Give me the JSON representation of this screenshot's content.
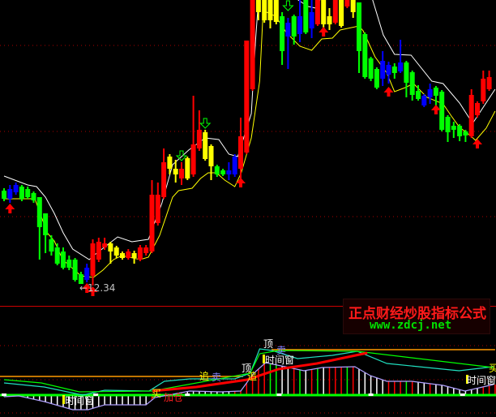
{
  "chart_data": {
    "type": "candlestick",
    "price_ylim": [
      11.84,
      19.38
    ],
    "candle_fields": [
      "high",
      "body_top",
      "body_bottom",
      "low",
      "color"
    ],
    "color_codes": {
      "r": "#ff0000",
      "g": "#00ff00",
      "y": "#ffff00",
      "b": "#0000ff"
    },
    "candles": [
      [
        14.74,
        14.68,
        14.48,
        14.42,
        "g"
      ],
      [
        14.82,
        14.72,
        14.48,
        14.38,
        "b"
      ],
      [
        14.88,
        14.82,
        14.64,
        14.58,
        "b"
      ],
      [
        14.82,
        14.78,
        14.48,
        14.42,
        "g"
      ],
      [
        14.78,
        14.72,
        14.52,
        14.48,
        "g"
      ],
      [
        14.66,
        14.62,
        14.44,
        14.38,
        "g"
      ],
      [
        14.52,
        14.52,
        13.78,
        12.98,
        "g"
      ],
      [
        14.12,
        14.12,
        13.58,
        13.14,
        "g"
      ],
      [
        13.58,
        13.48,
        13.18,
        13.08,
        "g"
      ],
      [
        13.38,
        13.28,
        12.88,
        12.84,
        "g"
      ],
      [
        13.28,
        13.18,
        12.78,
        12.74,
        "g"
      ],
      [
        13.08,
        12.98,
        12.78,
        12.72,
        "g"
      ],
      [
        13.02,
        12.98,
        12.48,
        12.44,
        "g"
      ],
      [
        12.68,
        12.62,
        12.38,
        12.38,
        "g"
      ],
      [
        12.88,
        12.78,
        12.48,
        12.42,
        "b"
      ],
      [
        13.48,
        13.38,
        12.58,
        12.34,
        "r"
      ],
      [
        13.52,
        13.42,
        12.98,
        12.92,
        "r"
      ],
      [
        13.52,
        13.38,
        13.28,
        13.22,
        "r"
      ],
      [
        13.42,
        13.38,
        13.18,
        12.88,
        "y"
      ],
      [
        13.32,
        13.28,
        13.08,
        13.02,
        "y"
      ],
      [
        13.18,
        13.14,
        13.02,
        12.98,
        "y"
      ],
      [
        13.24,
        13.18,
        13.02,
        12.98,
        "r"
      ],
      [
        13.2,
        13.14,
        13.02,
        12.88,
        "y"
      ],
      [
        13.34,
        13.28,
        12.98,
        12.94,
        "r"
      ],
      [
        13.34,
        13.28,
        13.14,
        13.08,
        "r"
      ],
      [
        14.94,
        14.58,
        13.18,
        13.14,
        "r"
      ],
      [
        14.88,
        14.58,
        13.88,
        13.82,
        "r"
      ],
      [
        15.72,
        15.38,
        14.52,
        14.48,
        "r"
      ],
      [
        15.58,
        15.52,
        15.22,
        15.08,
        "y"
      ],
      [
        15.44,
        15.22,
        15.08,
        14.88,
        "y"
      ],
      [
        15.38,
        15.22,
        14.98,
        14.82,
        "r"
      ],
      [
        15.52,
        15.48,
        14.98,
        14.94,
        "y"
      ],
      [
        17.02,
        15.82,
        15.08,
        15.02,
        "r"
      ],
      [
        16.66,
        16.18,
        15.72,
        15.66,
        "r"
      ],
      [
        16.18,
        16.12,
        15.46,
        15.42,
        "y"
      ],
      [
        15.82,
        15.78,
        15.28,
        14.94,
        "y"
      ],
      [
        15.32,
        15.28,
        15.08,
        15.02,
        "g"
      ],
      [
        15.22,
        15.18,
        15.08,
        15.04,
        "g"
      ],
      [
        15.38,
        15.18,
        15.08,
        14.94,
        "b"
      ],
      [
        15.58,
        15.52,
        15.08,
        15.02,
        "b"
      ],
      [
        16.48,
        16.02,
        15.22,
        14.98,
        "r"
      ],
      [
        18.38,
        18.38,
        15.62,
        15.58,
        "r"
      ],
      [
        19.38,
        19.38,
        17.18,
        17.14,
        "r"
      ],
      [
        19.38,
        19.38,
        19.08,
        18.88,
        "y"
      ],
      [
        19.38,
        19.38,
        18.88,
        18.82,
        "y"
      ],
      [
        19.38,
        19.38,
        18.88,
        18.68,
        "y"
      ],
      [
        19.38,
        19.38,
        18.84,
        18.78,
        "y"
      ],
      [
        19.08,
        18.98,
        18.12,
        17.78,
        "g"
      ],
      [
        18.94,
        18.82,
        18.48,
        17.68,
        "b"
      ],
      [
        19.02,
        18.98,
        18.48,
        18.28,
        "g"
      ],
      [
        19.38,
        18.98,
        18.54,
        18.34,
        "b"
      ],
      [
        19.38,
        19.38,
        18.58,
        18.54,
        "g"
      ],
      [
        19.38,
        19.08,
        18.68,
        18.44,
        "b"
      ],
      [
        19.38,
        19.38,
        18.78,
        18.74,
        "r"
      ],
      [
        19.38,
        19.38,
        18.78,
        18.64,
        "y"
      ],
      [
        19.18,
        18.98,
        18.78,
        18.64,
        "y"
      ],
      [
        19.38,
        19.38,
        18.82,
        18.78,
        "r"
      ],
      [
        19.38,
        19.38,
        18.74,
        18.7,
        "y"
      ],
      [
        19.38,
        19.38,
        19.22,
        19.18,
        "r"
      ],
      [
        19.38,
        19.38,
        19.08,
        18.94,
        "y"
      ],
      [
        19.32,
        19.32,
        18.12,
        17.58,
        "g"
      ],
      [
        18.58,
        18.54,
        17.48,
        17.44,
        "g"
      ],
      [
        17.98,
        17.94,
        17.44,
        17.38,
        "g"
      ],
      [
        17.72,
        17.68,
        17.22,
        17.18,
        "g"
      ],
      [
        18.12,
        17.88,
        17.44,
        17.26,
        "b"
      ],
      [
        17.86,
        17.78,
        17.54,
        17.32,
        "b"
      ],
      [
        17.82,
        17.74,
        17.58,
        17.44,
        "g"
      ],
      [
        18.4,
        17.84,
        17.62,
        17.58,
        "b"
      ],
      [
        17.88,
        17.84,
        17.34,
        16.98,
        "g"
      ],
      [
        17.64,
        17.6,
        17.04,
        16.9,
        "g"
      ],
      [
        17.28,
        17.14,
        16.94,
        16.9,
        "g"
      ],
      [
        17.06,
        17.02,
        16.78,
        16.74,
        "b"
      ],
      [
        17.32,
        17.18,
        16.98,
        16.82,
        "b"
      ],
      [
        17.26,
        17.22,
        17.02,
        16.74,
        "g"
      ],
      [
        17.16,
        17.12,
        16.18,
        16.14,
        "g"
      ],
      [
        16.54,
        16.5,
        16.12,
        15.88,
        "g"
      ],
      [
        16.38,
        16.28,
        16.18,
        15.98,
        "g"
      ],
      [
        16.32,
        16.28,
        16.02,
        15.9,
        "g"
      ],
      [
        16.18,
        16.14,
        16.04,
        15.88,
        "g"
      ],
      [
        17.18,
        17.04,
        16.02,
        15.98,
        "r"
      ],
      [
        16.88,
        16.84,
        16.54,
        16.48,
        "r"
      ],
      [
        17.64,
        17.44,
        16.88,
        16.82,
        "r"
      ],
      [
        17.64,
        17.48,
        17.18,
        17.14,
        "r"
      ]
    ],
    "ma_upper": {
      "color": "#ffffff",
      "points": [
        [
          0,
          15.04
        ],
        [
          4,
          14.82
        ],
        [
          5.5,
          14.78
        ],
        [
          7,
          14.52
        ],
        [
          8.5,
          14.12
        ],
        [
          10,
          13.64
        ],
        [
          11.6,
          13.24
        ],
        [
          14.4,
          12.98
        ],
        [
          15.5,
          13.12
        ],
        [
          19.2,
          13.54
        ],
        [
          21.6,
          13.42
        ],
        [
          24.4,
          13.48
        ],
        [
          26.7,
          14.38
        ],
        [
          28.5,
          15.32
        ],
        [
          31.2,
          15.68
        ],
        [
          34,
          15.98
        ],
        [
          36.3,
          15.94
        ],
        [
          38,
          15.58
        ],
        [
          39.5,
          15.52
        ],
        [
          41.8,
          16.58
        ],
        [
          42.5,
          18.38
        ],
        [
          43,
          19.38
        ],
        [
          44,
          19.8
        ],
        [
          49,
          19.8
        ],
        [
          49.7,
          19.38
        ],
        [
          51.4,
          19.22
        ],
        [
          52.7,
          19.18
        ],
        [
          53.4,
          19.38
        ],
        [
          54,
          19.8
        ],
        [
          61.5,
          19.8
        ],
        [
          62.3,
          19.38
        ],
        [
          64.1,
          18.52
        ],
        [
          66,
          18.04
        ],
        [
          68.8,
          18.02
        ],
        [
          72.3,
          17.38
        ],
        [
          74.2,
          17.32
        ],
        [
          77,
          16.84
        ],
        [
          79.2,
          16.34
        ],
        [
          83,
          17.18
        ]
      ]
    },
    "ma_lower": {
      "color": "#ffff00",
      "points": [
        [
          0,
          14.48
        ],
        [
          5.2,
          14.48
        ],
        [
          7.3,
          13.64
        ],
        [
          8.5,
          13.44
        ],
        [
          9.9,
          12.98
        ],
        [
          13,
          12.58
        ],
        [
          15.1,
          12.54
        ],
        [
          16.7,
          12.72
        ],
        [
          18.5,
          12.98
        ],
        [
          19.9,
          13.08
        ],
        [
          23,
          12.98
        ],
        [
          24.4,
          13.04
        ],
        [
          26.3,
          13.58
        ],
        [
          28.5,
          14.52
        ],
        [
          29.5,
          14.68
        ],
        [
          31.8,
          14.74
        ],
        [
          33.2,
          14.98
        ],
        [
          34.5,
          15.12
        ],
        [
          35.9,
          15.12
        ],
        [
          37.3,
          14.94
        ],
        [
          39,
          14.78
        ],
        [
          40.1,
          15.12
        ],
        [
          41.8,
          15.98
        ],
        [
          43.2,
          17.38
        ],
        [
          43.8,
          19.12
        ],
        [
          45.9,
          18.98
        ],
        [
          47.7,
          18.58
        ],
        [
          50,
          18.24
        ],
        [
          52,
          18.14
        ],
        [
          53.7,
          18.42
        ],
        [
          55.5,
          18.44
        ],
        [
          56.8,
          18.64
        ],
        [
          60,
          18.74
        ],
        [
          60.7,
          18.62
        ],
        [
          62.7,
          17.98
        ],
        [
          64.7,
          17.58
        ],
        [
          66,
          17.12
        ],
        [
          67.8,
          17.22
        ],
        [
          69.2,
          17.32
        ],
        [
          71.5,
          16.98
        ],
        [
          74.2,
          16.82
        ],
        [
          75.6,
          16.52
        ],
        [
          77,
          16.24
        ],
        [
          78.8,
          16.04
        ],
        [
          79.7,
          15.92
        ],
        [
          81.5,
          16.22
        ],
        [
          83,
          16.64
        ]
      ]
    },
    "signals": [
      {
        "i": 1,
        "type": "buy-arrow",
        "price": 14.38
      },
      {
        "i": 14,
        "type": "buy-arrow",
        "price": 12.42
      },
      {
        "i": 15,
        "type": "buy-arrow",
        "price": 12.34
      },
      {
        "i": 40,
        "type": "buy-arrow",
        "price": 15.02
      },
      {
        "i": 54,
        "type": "buy-arrow",
        "price": 18.74
      },
      {
        "i": 65,
        "type": "buy-arrow",
        "price": 17.26
      },
      {
        "i": 73,
        "type": "buy-arrow",
        "price": 16.82
      },
      {
        "i": 80,
        "type": "buy-arrow",
        "price": 15.98
      },
      {
        "i": 30,
        "type": "sell-arrow",
        "price": 15.38
      },
      {
        "i": 34,
        "type": "sell-arrow",
        "price": 16.18
      },
      {
        "i": 48,
        "type": "sell-arrow",
        "price": 19.08
      }
    ],
    "low_marker": {
      "text": "←12.34",
      "i": 15,
      "price": 12.34
    },
    "indicator": {
      "hist_colors": "WWWWWWWWWWWWWWWWWWWWWWWWWRRWRGRWWWWWWWWRRRRRRGGWWRGWRGWRRRGRWWWWWRRRGRWWRWWWWWWWWRRR",
      "hist_color_codes": {
        "W": "#ffffff",
        "R": "#ff0000",
        "G": "#00ff00"
      },
      "lines": [
        {
          "color": "#b0a0ff",
          "accent": "#ff00ff",
          "role": "histogram-envelope",
          "points": [
            [
              0,
              -3
            ],
            [
              2.5,
              -2
            ],
            [
              6.8,
              -9
            ],
            [
              11.6,
              -19
            ],
            [
              14.2,
              -19
            ],
            [
              17,
              -13
            ],
            [
              24,
              -13
            ],
            [
              25.5,
              -4
            ],
            [
              31.4,
              4
            ],
            [
              36.7,
              3
            ],
            [
              40,
              4
            ],
            [
              42.2,
              26
            ],
            [
              44.2,
              39
            ],
            [
              47.5,
              34
            ],
            [
              50.7,
              29
            ],
            [
              53.8,
              33
            ],
            [
              59.3,
              34
            ],
            [
              61.9,
              23
            ],
            [
              64.7,
              16
            ],
            [
              68.9,
              16
            ],
            [
              74.2,
              11
            ],
            [
              77.9,
              4
            ],
            [
              82.7,
              12
            ]
          ]
        },
        {
          "color": "#20e0c0",
          "role": "cyan",
          "points": [
            [
              0,
              14
            ],
            [
              6.8,
              9
            ],
            [
              13.3,
              -1
            ],
            [
              17,
              5
            ],
            [
              24.5,
              4
            ],
            [
              27.1,
              16
            ],
            [
              31.4,
              19
            ],
            [
              39,
              19
            ],
            [
              41.6,
              26
            ],
            [
              43.2,
              56
            ],
            [
              45.3,
              54
            ],
            [
              49.6,
              44
            ],
            [
              55.5,
              48
            ],
            [
              59.7,
              53
            ],
            [
              64.7,
              38
            ],
            [
              76.9,
              29
            ],
            [
              82.7,
              34
            ]
          ]
        },
        {
          "color": "#00ff00",
          "role": "green",
          "points": [
            [
              0,
              18
            ],
            [
              6.3,
              14
            ],
            [
              12.7,
              3
            ],
            [
              25,
              4
            ],
            [
              41.6,
              26
            ],
            [
              43.2,
              50
            ],
            [
              46.4,
              54
            ],
            [
              59.7,
              53
            ],
            [
              82.7,
              33
            ]
          ]
        },
        {
          "color": "#ff0000",
          "role": "red-thick",
          "points": [
            [
              25.1,
              4
            ],
            [
              32.5,
              9
            ],
            [
              41.1,
              18
            ],
            [
              46.4,
              31
            ],
            [
              52.9,
              38
            ],
            [
              61.4,
              51
            ]
          ]
        }
      ],
      "orange_levels": [
        {
          "value": 22,
          "from": 0,
          "to": 40.4
        },
        {
          "value": 55,
          "from": 45.9,
          "to": 83
        }
      ],
      "orange_color": "#ff9900",
      "grid_color": "#aa0000"
    },
    "labels": {
      "top1": "顶",
      "sell1": "卖",
      "window1": "时间窗",
      "top2": "顶",
      "chase1": "追",
      "chase2": "追",
      "sell2": "卖",
      "buy1": "买",
      "add": "加仓",
      "window2": "时间窗",
      "window3": "时间窗",
      "buy2": "买"
    }
  },
  "watermark": {
    "title": "正点财经炒股指标公式",
    "url": "www.zdcj.net"
  }
}
